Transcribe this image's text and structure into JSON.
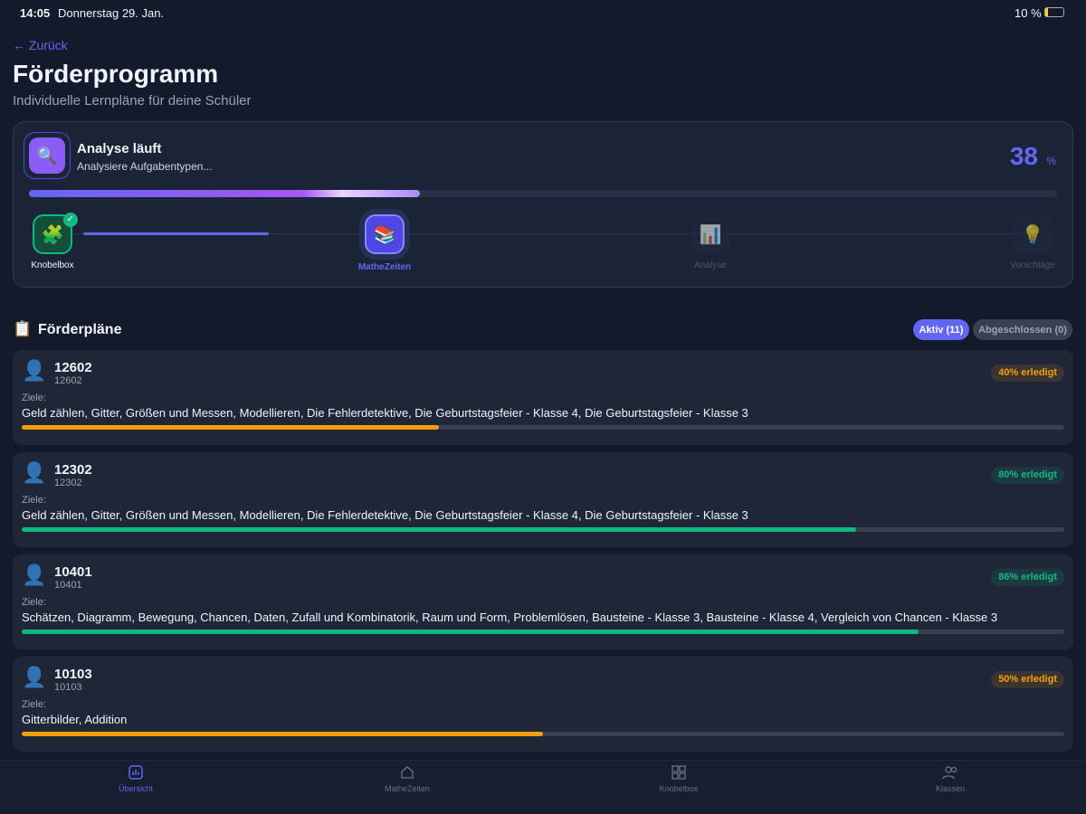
{
  "status_bar": {
    "time": "14:05",
    "date": "Donnerstag 29. Jan.",
    "battery": "10 %"
  },
  "header": {
    "back": "← Zurück",
    "title": "Förderprogramm",
    "subtitle": "Individuelle Lernpläne für deine Schüler"
  },
  "analysis": {
    "icon": "🔍",
    "title": "Analyse läuft",
    "status": "Analysiere Aufgabentypen...",
    "percent": 38,
    "percent_unit": "%",
    "steps": [
      {
        "icon": "🧩",
        "label": "Knobelbox",
        "state": "done"
      },
      {
        "icon": "📚",
        "label": "MatheZeiten",
        "state": "active"
      },
      {
        "icon": "📊",
        "label": "Analyse",
        "state": "pending"
      },
      {
        "icon": "💡",
        "label": "Vorschläge",
        "state": "pending"
      }
    ]
  },
  "plans": {
    "icon": "📋",
    "title": "Förderpläne",
    "tabs": [
      {
        "label": "Aktiv (11)",
        "active": true
      },
      {
        "label": "Abgeschlossen (0)",
        "active": false
      }
    ],
    "items": [
      {
        "icon": "👤",
        "name": "12602",
        "id": "12602",
        "progress": 40,
        "progress_label": "40% erledigt",
        "color": "#f59e0b",
        "goals_label": "Ziele:",
        "goals": "Geld zählen, Gitter, Größen und Messen, Modellieren, Die Fehlerdetektive, Die Geburtstagsfeier - Klasse 4, Die Geburtstagsfeier - Klasse 3"
      },
      {
        "icon": "👤",
        "name": "12302",
        "id": "12302",
        "progress": 80,
        "progress_label": "80% erledigt",
        "color": "#10b981",
        "goals_label": "Ziele:",
        "goals": "Geld zählen, Gitter, Größen und Messen, Modellieren, Die Fehlerdetektive, Die Geburtstagsfeier - Klasse 4, Die Geburtstagsfeier - Klasse 3"
      },
      {
        "icon": "👤",
        "name": "10401",
        "id": "10401",
        "progress": 86,
        "progress_label": "86% erledigt",
        "color": "#10b981",
        "goals_label": "Ziele:",
        "goals": "Schätzen, Diagramm, Bewegung, Chancen, Daten, Zufall und Kombinatorik, Raum und Form, Problemlösen, Bausteine - Klasse 3, Bausteine - Klasse 4, Vergleich von Chancen - Klasse 3"
      },
      {
        "icon": "👤",
        "name": "10103",
        "id": "10103",
        "progress": 50,
        "progress_label": "50% erledigt",
        "color": "#f59e0b",
        "goals_label": "Ziele:",
        "goals": "Gitterbilder, Addition"
      }
    ]
  },
  "nav": [
    {
      "label": "Übersicht",
      "active": true
    },
    {
      "label": "MatheZeiten",
      "active": false
    },
    {
      "label": "Knobelbox",
      "active": false
    },
    {
      "label": "Klassen",
      "active": false
    }
  ]
}
